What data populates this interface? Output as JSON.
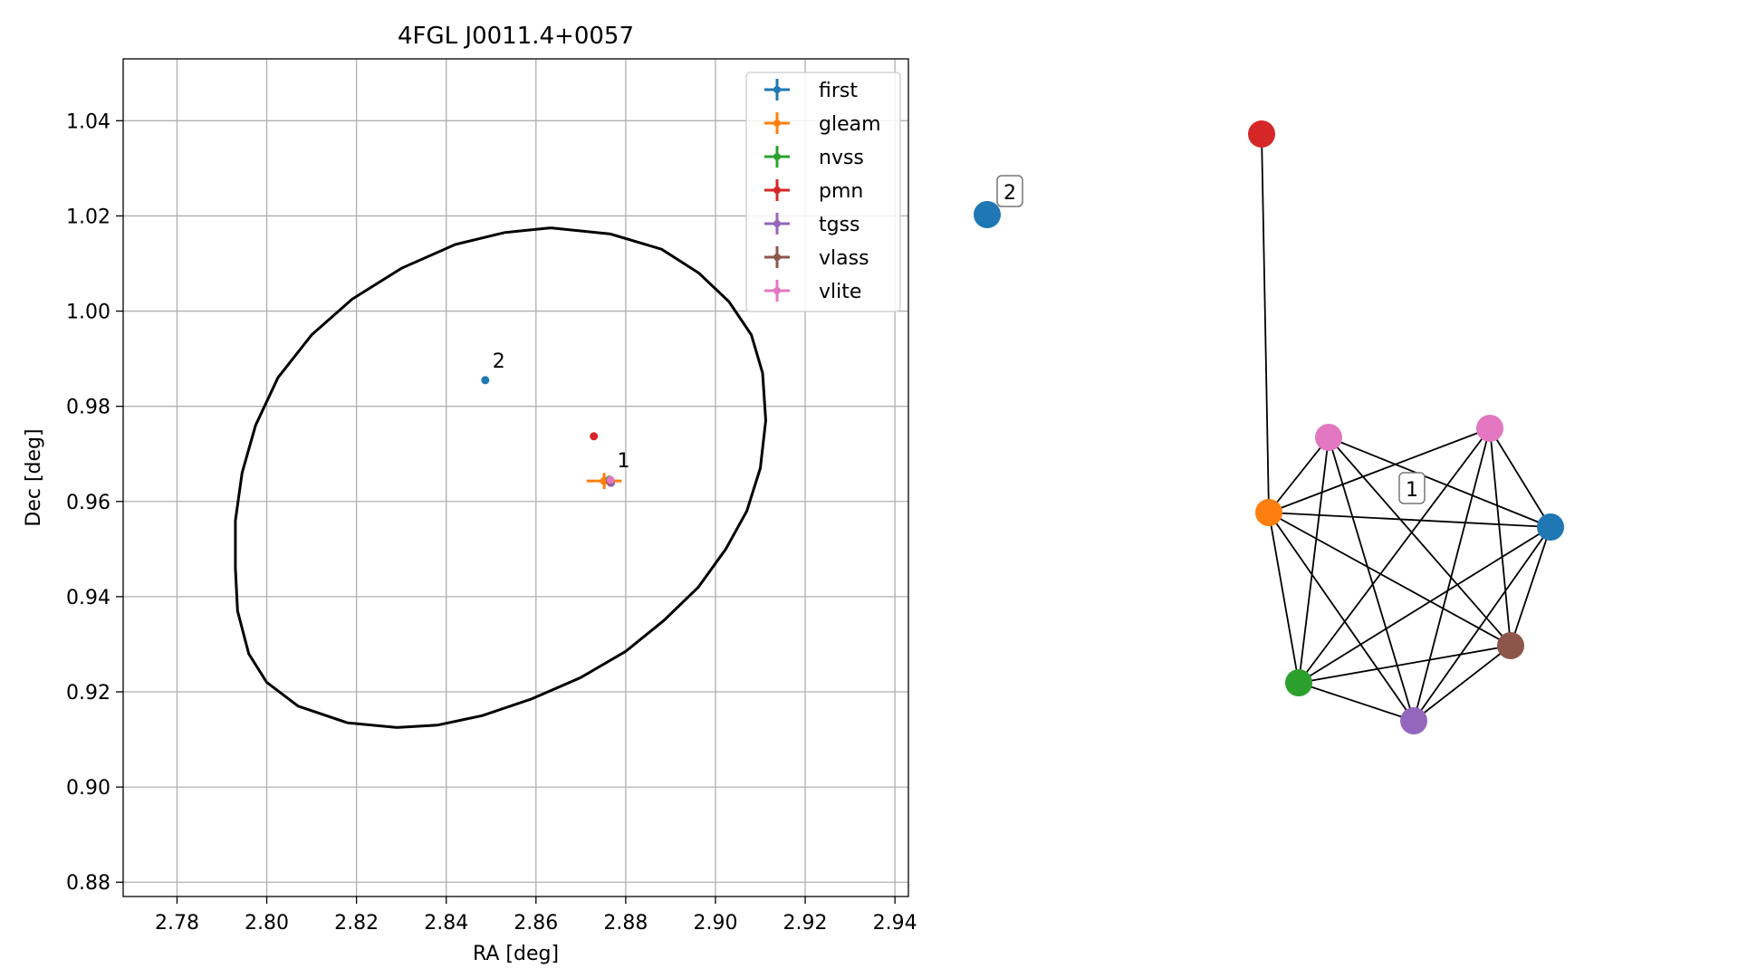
{
  "chart_data": [
    {
      "type": "scatter",
      "title": "4FGL J0011.4+0057",
      "xlabel": "RA [deg]",
      "ylabel": "Dec [deg]",
      "xlim": [
        2.768,
        2.943
      ],
      "ylim": [
        0.877,
        1.053
      ],
      "xticks": [
        2.78,
        2.8,
        2.82,
        2.84,
        2.86,
        2.88,
        2.9,
        2.92,
        2.94
      ],
      "yticks": [
        0.88,
        0.9,
        0.92,
        0.94,
        0.96,
        0.98,
        1.0,
        1.02,
        1.04
      ],
      "xtick_labels": [
        "2.78",
        "2.80",
        "2.82",
        "2.84",
        "2.86",
        "2.88",
        "2.90",
        "2.92",
        "2.94"
      ],
      "ytick_labels": [
        "0.88",
        "0.90",
        "0.92",
        "0.94",
        "0.96",
        "0.98",
        "1.00",
        "1.02",
        "1.04"
      ],
      "grid": true,
      "legend_position": "top-right",
      "series": [
        {
          "name": "first",
          "color": "#1f77b4",
          "points": [
            {
              "x": 2.8487,
              "y": 0.9855,
              "xerr": 0.0002,
              "yerr": 0.0002
            }
          ]
        },
        {
          "name": "gleam",
          "color": "#ff7f0e",
          "points": [
            {
              "x": 2.8752,
              "y": 0.9643,
              "xerr": 0.0039,
              "yerr": 0.0017
            }
          ]
        },
        {
          "name": "nvss",
          "color": "#2ca02c",
          "points": [
            {
              "x": 2.8764,
              "y": 0.9646,
              "xerr": 0.0004,
              "yerr": 0.0003
            }
          ]
        },
        {
          "name": "pmn",
          "color": "#d62728",
          "points": [
            {
              "x": 2.8729,
              "y": 0.9737,
              "xerr": 0.0002,
              "yerr": 0.0002
            }
          ]
        },
        {
          "name": "tgss",
          "color": "#9467bd",
          "points": [
            {
              "x": 2.8767,
              "y": 0.9639,
              "xerr": 0.0004,
              "yerr": 0.0004
            }
          ]
        },
        {
          "name": "vlass",
          "color": "#8c564b",
          "points": [
            {
              "x": 2.8765,
              "y": 0.9643,
              "xerr": 0.0001,
              "yerr": 0.0001
            }
          ]
        },
        {
          "name": "vlite",
          "color": "#e377c2",
          "points": [
            {
              "x": 2.8766,
              "y": 0.9645,
              "xerr": 0.0003,
              "yerr": 0.0003
            }
          ]
        }
      ],
      "annotations": [
        {
          "text": "1",
          "x": 2.8765,
          "y": 0.9645
        },
        {
          "text": "2",
          "x": 2.8487,
          "y": 0.9855
        }
      ],
      "ellipse": {
        "color": "#000000",
        "points": [
          [
            2.8633,
            1.0175
          ],
          [
            2.8766,
            1.0162
          ],
          [
            2.888,
            1.013
          ],
          [
            2.8963,
            1.008
          ],
          [
            2.903,
            1.002
          ],
          [
            2.908,
            0.995
          ],
          [
            2.9105,
            0.987
          ],
          [
            2.9112,
            0.977
          ],
          [
            2.91,
            0.967
          ],
          [
            2.907,
            0.958
          ],
          [
            2.9023,
            0.95
          ],
          [
            2.8962,
            0.942
          ],
          [
            2.8885,
            0.935
          ],
          [
            2.88,
            0.9285
          ],
          [
            2.87,
            0.923
          ],
          [
            2.859,
            0.9185
          ],
          [
            2.848,
            0.915
          ],
          [
            2.838,
            0.913
          ],
          [
            2.829,
            0.9125
          ],
          [
            2.818,
            0.9135
          ],
          [
            2.807,
            0.917
          ],
          [
            2.8,
            0.922
          ],
          [
            2.796,
            0.928
          ],
          [
            2.7935,
            0.937
          ],
          [
            2.793,
            0.946
          ],
          [
            2.793,
            0.956
          ],
          [
            2.7945,
            0.966
          ],
          [
            2.7975,
            0.976
          ],
          [
            2.8025,
            0.986
          ],
          [
            2.81,
            0.995
          ],
          [
            2.819,
            1.0025
          ],
          [
            2.83,
            1.009
          ],
          [
            2.842,
            1.014
          ],
          [
            2.853,
            1.0165
          ],
          [
            2.8633,
            1.0175
          ]
        ]
      }
    },
    {
      "type": "network",
      "nodes": [
        {
          "id": "2",
          "color": "#1f77b4",
          "label": "2"
        },
        {
          "id": "pmn",
          "color": "#d62728"
        },
        {
          "id": "gleam",
          "color": "#ff7f0e"
        },
        {
          "id": "vlite_a",
          "color": "#e377c2"
        },
        {
          "id": "vlite_b",
          "color": "#e377c2"
        },
        {
          "id": "first",
          "color": "#1f77b4"
        },
        {
          "id": "vlass",
          "color": "#8c564b"
        },
        {
          "id": "tgss",
          "color": "#9467bd"
        },
        {
          "id": "nvss",
          "color": "#2ca02c"
        }
      ],
      "edges": [
        [
          "pmn",
          "gleam"
        ],
        [
          "gleam",
          "vlite_a"
        ],
        [
          "gleam",
          "vlite_b"
        ],
        [
          "gleam",
          "first"
        ],
        [
          "gleam",
          "vlass"
        ],
        [
          "gleam",
          "tgss"
        ],
        [
          "gleam",
          "nvss"
        ],
        [
          "vlite_a",
          "first"
        ],
        [
          "vlite_a",
          "vlass"
        ],
        [
          "vlite_a",
          "tgss"
        ],
        [
          "vlite_a",
          "nvss"
        ],
        [
          "vlite_b",
          "first"
        ],
        [
          "vlite_b",
          "vlass"
        ],
        [
          "vlite_b",
          "tgss"
        ],
        [
          "vlite_b",
          "nvss"
        ],
        [
          "first",
          "vlass"
        ],
        [
          "first",
          "tgss"
        ],
        [
          "first",
          "nvss"
        ],
        [
          "vlass",
          "tgss"
        ],
        [
          "vlass",
          "nvss"
        ],
        [
          "tgss",
          "nvss"
        ]
      ],
      "component_labels": [
        {
          "text": "1"
        },
        {
          "text": "2"
        }
      ]
    }
  ]
}
